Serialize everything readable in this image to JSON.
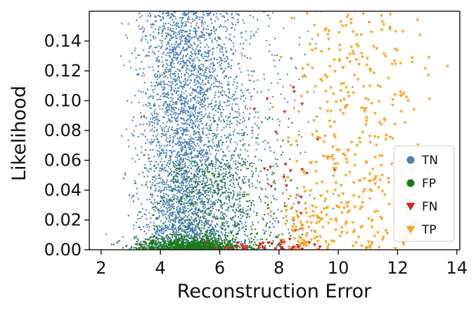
{
  "chart_data": {
    "type": "scatter",
    "xlabel": "Reconstruction Error",
    "ylabel": "Likelihood",
    "xlim": [
      1.6,
      14.1
    ],
    "ylim": [
      0.0,
      0.16
    ],
    "xticks": [
      2,
      4,
      6,
      8,
      10,
      12,
      14
    ],
    "yticks": [
      0.0,
      0.02,
      0.04,
      0.06,
      0.08,
      0.1,
      0.12,
      0.14
    ],
    "xtick_labels": [
      "2",
      "4",
      "6",
      "8",
      "10",
      "12",
      "14"
    ],
    "ytick_labels": [
      "0.00",
      "0.02",
      "0.04",
      "0.06",
      "0.08",
      "0.10",
      "0.12",
      "0.14"
    ],
    "grid": false,
    "legend_position": "lower-right",
    "series": [
      {
        "name": "TN",
        "marker": "circle",
        "color": "#4a7fb8",
        "clusters": [
          {
            "count": 3200,
            "x_mean": 4.8,
            "x_sd": 0.75,
            "y_min": 0.0,
            "y_max": 0.16
          },
          {
            "count": 500,
            "x_mean": 6.3,
            "x_sd": 0.55,
            "y_min": 0.0,
            "y_max": 0.16
          },
          {
            "count": 150,
            "x_mean": 7.8,
            "x_sd": 0.7,
            "y_min": 0.0,
            "y_max": 0.16
          }
        ]
      },
      {
        "name": "FP",
        "marker": "circle",
        "color": "#1a7a1a",
        "clusters": [
          {
            "count": 900,
            "x_mean": 5.0,
            "x_sd": 0.9,
            "y_min": 0.0,
            "y_max": 0.008
          },
          {
            "count": 500,
            "x_mean": 5.6,
            "x_sd": 1.0,
            "y_min": 0.0,
            "y_max": 0.06
          },
          {
            "count": 120,
            "x_mean": 7.2,
            "x_sd": 0.9,
            "y_min": 0.0,
            "y_max": 0.09
          }
        ]
      },
      {
        "name": "FN",
        "marker": "triangle-down",
        "color": "#e02020",
        "clusters": [
          {
            "count": 40,
            "x_mean": 7.5,
            "x_sd": 1.0,
            "y_min": 0.0,
            "y_max": 0.005
          },
          {
            "count": 25,
            "x_mean": 8.4,
            "x_sd": 0.6,
            "y_min": 0.0,
            "y_max": 0.12
          }
        ]
      },
      {
        "name": "TP",
        "marker": "triangle-down",
        "color": "#ffa320",
        "clusters": [
          {
            "count": 380,
            "x_mean": 10.6,
            "x_sd": 1.1,
            "y_min": 0.0,
            "y_max": 0.16
          },
          {
            "count": 60,
            "x_mean": 8.9,
            "x_sd": 0.4,
            "y_min": 0.0,
            "y_max": 0.03
          }
        ]
      }
    ]
  }
}
